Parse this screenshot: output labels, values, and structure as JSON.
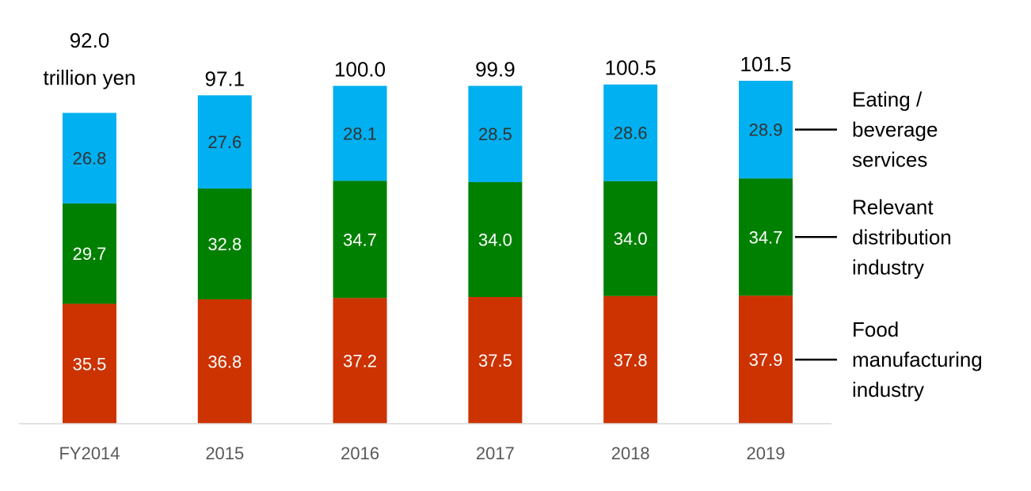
{
  "chart_data": {
    "type": "bar",
    "stacked": true,
    "categories": [
      "FY2014",
      "2015",
      "2016",
      "2017",
      "2018",
      "2019"
    ],
    "series": [
      {
        "name": "Food manufacturing industry",
        "legend_lines": [
          "Food",
          "manufacturing",
          "industry"
        ],
        "color": "#CC3300",
        "values": [
          35.5,
          36.8,
          37.2,
          37.5,
          37.8,
          37.9
        ]
      },
      {
        "name": "Relevant distribution industry",
        "legend_lines": [
          "Relevant",
          "distribution",
          "industry"
        ],
        "color": "#008000",
        "values": [
          29.7,
          32.8,
          34.7,
          34.0,
          34.0,
          34.7
        ]
      },
      {
        "name": "Eating / beverage services",
        "legend_lines": [
          "Eating /",
          "beverage",
          "services"
        ],
        "color": "#00B0F0",
        "values": [
          26.8,
          27.6,
          28.1,
          28.5,
          28.6,
          28.9
        ]
      }
    ],
    "totals": [
      "92.0",
      "97.1",
      "100.0",
      "99.9",
      "100.5",
      "101.5"
    ],
    "total_unit": "trillion yen",
    "value_labels": [
      [
        "35.5",
        "36.8",
        "37.2",
        "37.5",
        "37.8",
        "37.9"
      ],
      [
        "29.7",
        "32.8",
        "34.7",
        "34.0",
        "34.0",
        "34.7"
      ],
      [
        "26.8",
        "27.6",
        "28.1",
        "28.5",
        "28.6",
        "28.9"
      ]
    ],
    "ylim": [
      0,
      101.5
    ],
    "grid": false,
    "legend_position": "right"
  }
}
